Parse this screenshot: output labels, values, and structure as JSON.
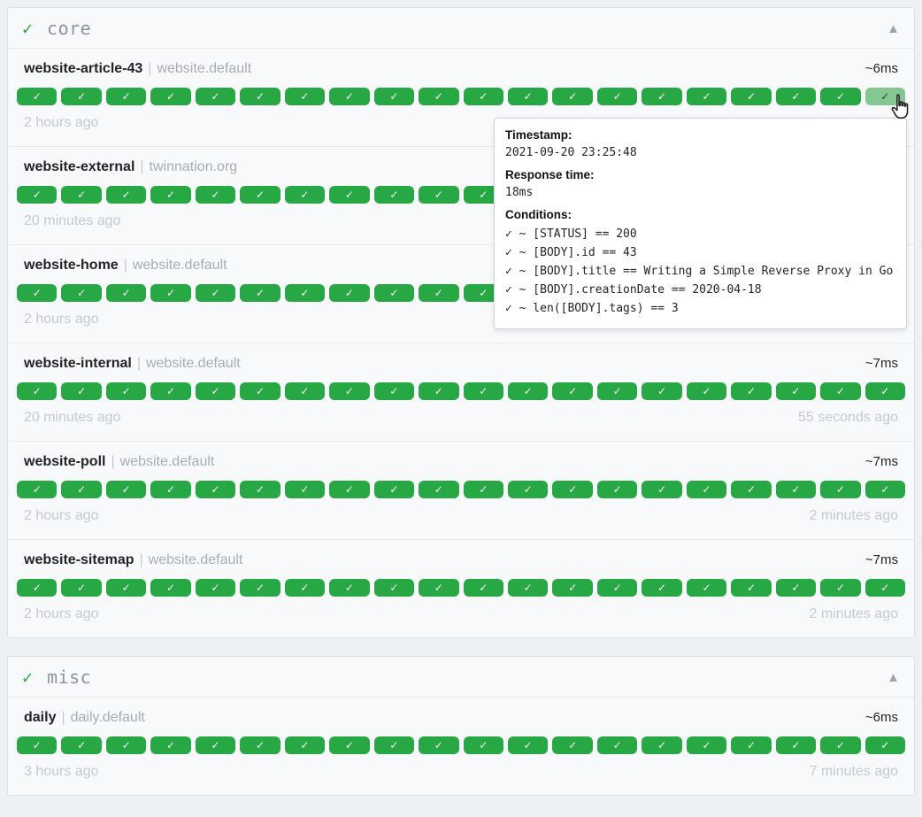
{
  "icons": {
    "check": "✓",
    "collapse": "▲"
  },
  "colors": {
    "success_badge": "#28a745",
    "hovered_badge": "#85c791",
    "page_background": "#eef1f4"
  },
  "separator": "|",
  "groups": [
    {
      "name": "core",
      "services": [
        {
          "name": "website-article-43",
          "suffix": "website.default",
          "response_time": "~6ms",
          "oldest_time": "2 hours ago",
          "newest_time": "",
          "badge_count": 20,
          "hovered_badge_index": 19
        },
        {
          "name": "website-external",
          "suffix": "twinnation.org",
          "response_time": "",
          "oldest_time": "20 minutes ago",
          "newest_time": "",
          "badge_count": 20
        },
        {
          "name": "website-home",
          "suffix": "website.default",
          "response_time": "",
          "oldest_time": "2 hours ago",
          "newest_time": "",
          "badge_count": 20
        },
        {
          "name": "website-internal",
          "suffix": "website.default",
          "response_time": "~7ms",
          "oldest_time": "20 minutes ago",
          "newest_time": "55 seconds ago",
          "badge_count": 20
        },
        {
          "name": "website-poll",
          "suffix": "website.default",
          "response_time": "~7ms",
          "oldest_time": "2 hours ago",
          "newest_time": "2 minutes ago",
          "badge_count": 20
        },
        {
          "name": "website-sitemap",
          "suffix": "website.default",
          "response_time": "~7ms",
          "oldest_time": "2 hours ago",
          "newest_time": "2 minutes ago",
          "badge_count": 20
        }
      ]
    },
    {
      "name": "misc",
      "services": [
        {
          "name": "daily",
          "suffix": "daily.default",
          "response_time": "~6ms",
          "oldest_time": "3 hours ago",
          "newest_time": "7 minutes ago",
          "badge_count": 20
        }
      ]
    }
  ],
  "tooltip": {
    "timestamp_label": "Timestamp:",
    "timestamp": "2021-09-20 23:25:48",
    "response_time_label": "Response time:",
    "response_time": "18ms",
    "conditions_label": "Conditions:",
    "conditions": [
      "✓ ~ [STATUS] == 200",
      "✓ ~ [BODY].id == 43",
      "✓ ~ [BODY].title == Writing a Simple Reverse Proxy in Go",
      "✓ ~ [BODY].creationDate == 2020-04-18",
      "✓ ~ len([BODY].tags) == 3"
    ]
  }
}
